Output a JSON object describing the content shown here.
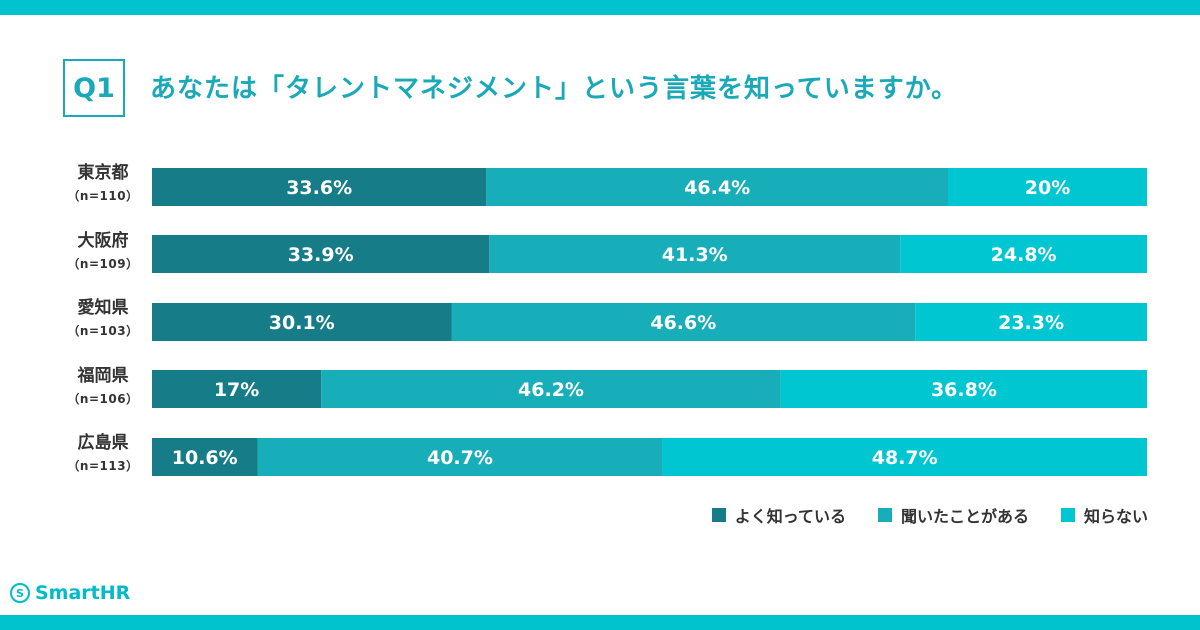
{
  "header": {
    "badge": "Q1",
    "question": "あなたは「タレントマネジメント」という言葉を知っていますか。"
  },
  "chart_data": {
    "type": "bar",
    "orientation": "horizontal",
    "stacked": true,
    "normalized_percent": true,
    "categories": [
      "東京都",
      "大阪府",
      "愛知県",
      "福岡県",
      "広島県"
    ],
    "category_n": [
      "（n=110）",
      "（n=109）",
      "（n=103）",
      "（n=106）",
      "（n=113）"
    ],
    "series": [
      {
        "name": "よく知っている",
        "color": "#167c87",
        "values": [
          33.6,
          33.9,
          30.1,
          17,
          10.6
        ],
        "labels": [
          "33.6%",
          "33.9%",
          "30.1%",
          "17%",
          "10.6%"
        ]
      },
      {
        "name": "聞いたことがある",
        "color": "#17aeb9",
        "values": [
          46.4,
          41.3,
          46.6,
          46.2,
          40.7
        ],
        "labels": [
          "46.4%",
          "41.3%",
          "46.6%",
          "46.2%",
          "40.7%"
        ]
      },
      {
        "name": "知らない",
        "color": "#00c6d1",
        "values": [
          20,
          24.8,
          23.3,
          36.8,
          48.7
        ],
        "labels": [
          "20%",
          "24.8%",
          "23.3%",
          "36.8%",
          "48.7%"
        ]
      }
    ],
    "xlim": [
      0,
      100
    ],
    "legend_position": "bottom-right",
    "grid": false
  },
  "rows": [
    {
      "pref": "東京都",
      "n": "（n=110）"
    },
    {
      "pref": "大阪府",
      "n": "（n=109）"
    },
    {
      "pref": "愛知県",
      "n": "（n=103）"
    },
    {
      "pref": "福岡県",
      "n": "（n=106）"
    },
    {
      "pref": "広島県",
      "n": "（n=113）"
    }
  ],
  "legend": [
    {
      "label": "よく知っている",
      "color": "#167c87"
    },
    {
      "label": "聞いたことがある",
      "color": "#17aeb9"
    },
    {
      "label": "知らない",
      "color": "#00c6d1"
    }
  ],
  "logo": {
    "mark": "S",
    "text": "SmartHR"
  }
}
